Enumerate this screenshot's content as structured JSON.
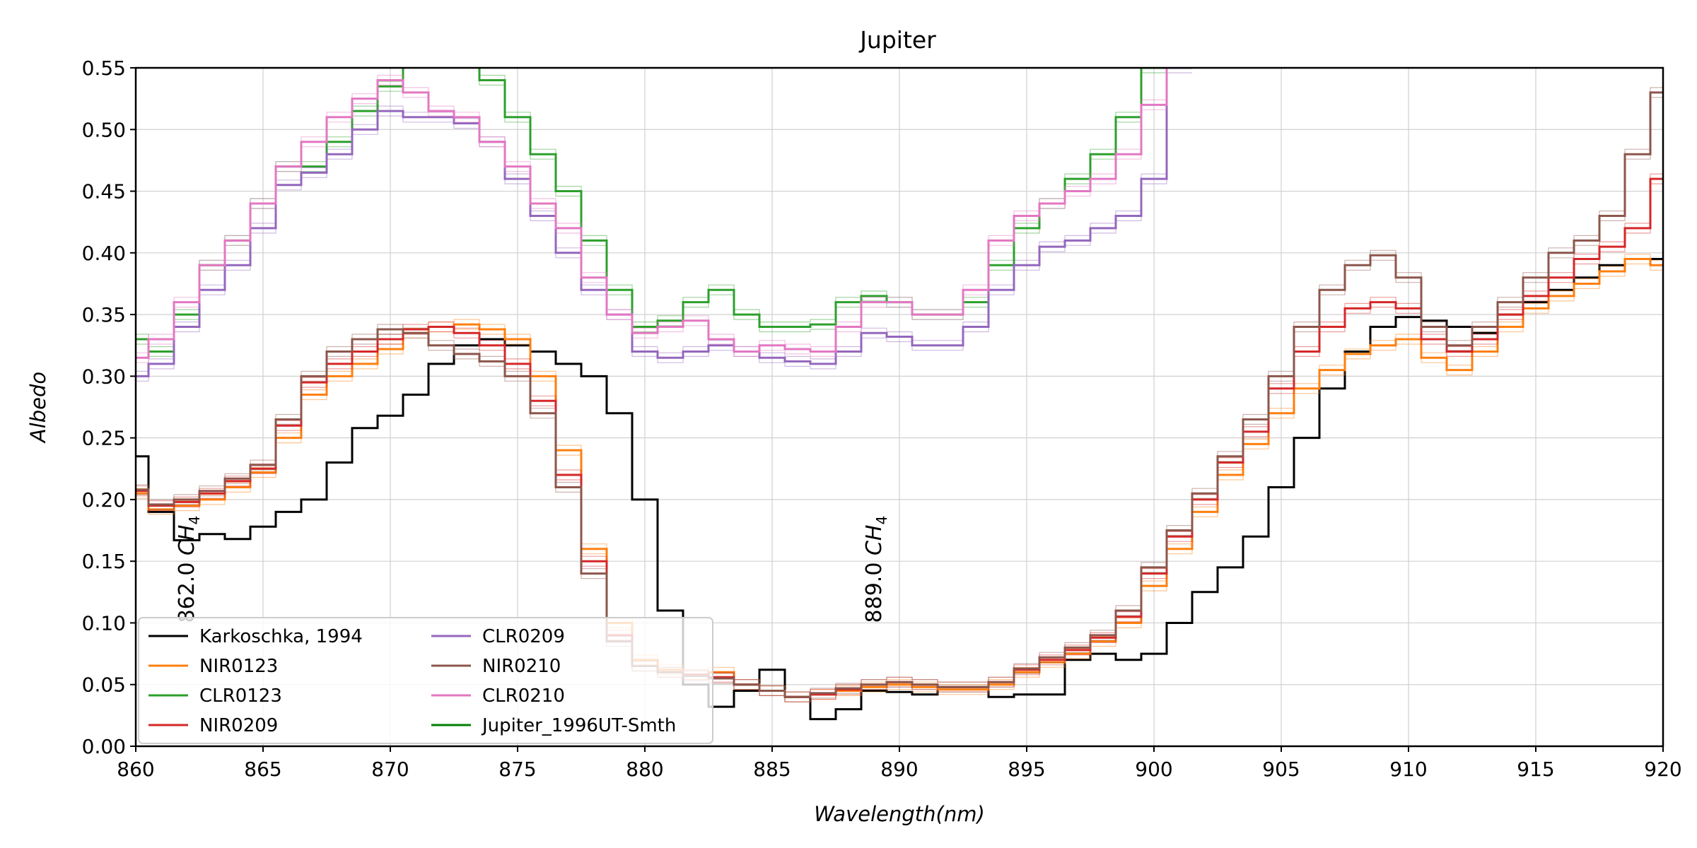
{
  "chart_data": {
    "type": "line",
    "title": "Jupiter",
    "xlabel": "Wavelength(nm)",
    "ylabel": "Albedo",
    "xlim": [
      860,
      920
    ],
    "ylim": [
      0,
      0.55
    ],
    "xticks": [
      860,
      865,
      870,
      875,
      880,
      885,
      890,
      895,
      900,
      905,
      910,
      915,
      920
    ],
    "yticks": [
      0.0,
      0.05,
      0.1,
      0.15,
      0.2,
      0.25,
      0.3,
      0.35,
      0.4,
      0.45,
      0.5,
      0.55
    ],
    "xtick_labels": [
      "860",
      "865",
      "870",
      "875",
      "880",
      "885",
      "890",
      "895",
      "900",
      "905",
      "910",
      "915",
      "920"
    ],
    "ytick_labels": [
      "0.00",
      "0.05",
      "0.10",
      "0.15",
      "0.20",
      "0.25",
      "0.30",
      "0.35",
      "0.40",
      "0.45",
      "0.50",
      "0.55"
    ],
    "grid": true,
    "legend_position": "lower-left",
    "annotations": [
      {
        "text": "862.0 CH4",
        "label_plain": "862.0",
        "x": 862.0,
        "y": 0.1
      },
      {
        "text": "889.0 CH4",
        "label_plain": "889.0",
        "x": 889.0,
        "y": 0.1
      }
    ],
    "series": [
      {
        "name": "Karkoschka, 1994",
        "color": "#000000",
        "x": [
          860,
          861,
          862,
          863,
          864,
          865,
          866,
          867,
          868,
          869,
          870,
          871,
          872,
          873,
          874,
          875,
          876,
          877,
          878,
          879,
          880,
          881,
          882,
          883,
          884,
          885,
          886,
          887,
          888,
          889,
          890,
          891,
          892,
          893,
          894,
          895,
          896,
          897,
          898,
          899,
          900,
          901,
          902,
          903,
          904,
          905,
          906,
          907,
          908,
          909,
          910,
          911,
          912,
          913,
          914,
          915,
          916,
          917,
          918,
          919,
          920
        ],
        "y": [
          0.235,
          0.19,
          0.167,
          0.172,
          0.168,
          0.178,
          0.19,
          0.2,
          0.23,
          0.258,
          0.268,
          0.285,
          0.31,
          0.325,
          0.33,
          0.325,
          0.32,
          0.31,
          0.3,
          0.27,
          0.2,
          0.11,
          0.05,
          0.032,
          0.045,
          0.062,
          0.04,
          0.022,
          0.03,
          0.045,
          0.044,
          0.042,
          0.048,
          0.048,
          0.04,
          0.042,
          0.042,
          0.07,
          0.075,
          0.07,
          0.075,
          0.1,
          0.125,
          0.145,
          0.17,
          0.21,
          0.25,
          0.29,
          0.32,
          0.34,
          0.348,
          0.345,
          0.34,
          0.335,
          0.35,
          0.36,
          0.37,
          0.38,
          0.39,
          0.395,
          0.395
        ]
      },
      {
        "name": "NIR0123",
        "color": "#ff7f0e",
        "x": [
          860,
          861,
          862,
          863,
          864,
          865,
          866,
          867,
          868,
          869,
          870,
          871,
          872,
          873,
          874,
          875,
          876,
          877,
          878,
          879,
          880,
          881,
          882,
          883,
          884,
          885,
          886,
          887,
          888,
          889,
          890,
          891,
          892,
          893,
          894,
          895,
          896,
          897,
          898,
          899,
          900,
          901,
          902,
          903,
          904,
          905,
          906,
          907,
          908,
          909,
          910,
          911,
          912,
          913,
          914,
          915,
          916,
          917,
          918,
          919,
          920
        ],
        "y": [
          0.205,
          0.192,
          0.195,
          0.2,
          0.21,
          0.222,
          0.25,
          0.285,
          0.3,
          0.31,
          0.322,
          0.335,
          0.34,
          0.342,
          0.338,
          0.33,
          0.3,
          0.24,
          0.16,
          0.1,
          0.07,
          0.062,
          0.058,
          0.06,
          0.05,
          0.045,
          0.04,
          0.042,
          0.045,
          0.048,
          0.05,
          0.048,
          0.046,
          0.046,
          0.05,
          0.06,
          0.068,
          0.075,
          0.085,
          0.1,
          0.13,
          0.16,
          0.19,
          0.22,
          0.245,
          0.27,
          0.29,
          0.305,
          0.318,
          0.325,
          0.33,
          0.315,
          0.305,
          0.32,
          0.34,
          0.355,
          0.365,
          0.375,
          0.385,
          0.395,
          0.39
        ]
      },
      {
        "name": "CLR0123",
        "color": "#2ca02c",
        "x": [
          860,
          861,
          862,
          863,
          864,
          865,
          866,
          867,
          868,
          869,
          870,
          871,
          872,
          873,
          874,
          875,
          876,
          877,
          878,
          879,
          880,
          881,
          882,
          883,
          884,
          885,
          886,
          887,
          888,
          889,
          890,
          891,
          892,
          893,
          894,
          895,
          896,
          897,
          898,
          899,
          900,
          901
        ],
        "y": [
          0.33,
          0.32,
          0.35,
          0.39,
          0.41,
          0.44,
          0.47,
          0.47,
          0.49,
          0.515,
          0.535,
          0.56,
          0.58,
          0.56,
          0.54,
          0.51,
          0.48,
          0.45,
          0.41,
          0.37,
          0.34,
          0.345,
          0.36,
          0.37,
          0.35,
          0.34,
          0.34,
          0.342,
          0.36,
          0.365,
          0.36,
          0.35,
          0.35,
          0.36,
          0.39,
          0.42,
          0.44,
          0.46,
          0.48,
          0.51,
          0.55,
          0.6
        ]
      },
      {
        "name": "NIR0209",
        "color": "#d62728",
        "x": [
          860,
          861,
          862,
          863,
          864,
          865,
          866,
          867,
          868,
          869,
          870,
          871,
          872,
          873,
          874,
          875,
          876,
          877,
          878,
          879,
          880,
          881,
          882,
          883,
          884,
          885,
          886,
          887,
          888,
          889,
          890,
          891,
          892,
          893,
          894,
          895,
          896,
          897,
          898,
          899,
          900,
          901,
          902,
          903,
          904,
          905,
          906,
          907,
          908,
          909,
          910,
          911,
          912,
          913,
          914,
          915,
          916,
          917,
          918,
          919,
          920
        ],
        "y": [
          0.207,
          0.195,
          0.198,
          0.205,
          0.215,
          0.225,
          0.26,
          0.295,
          0.31,
          0.32,
          0.33,
          0.338,
          0.34,
          0.335,
          0.325,
          0.31,
          0.28,
          0.22,
          0.15,
          0.09,
          0.065,
          0.06,
          0.058,
          0.056,
          0.05,
          0.045,
          0.04,
          0.042,
          0.046,
          0.05,
          0.052,
          0.05,
          0.048,
          0.048,
          0.052,
          0.062,
          0.07,
          0.078,
          0.088,
          0.105,
          0.14,
          0.17,
          0.2,
          0.23,
          0.255,
          0.29,
          0.32,
          0.34,
          0.355,
          0.36,
          0.355,
          0.33,
          0.32,
          0.33,
          0.35,
          0.365,
          0.38,
          0.395,
          0.405,
          0.42,
          0.46
        ]
      },
      {
        "name": "CLR0209",
        "color": "#9467bd",
        "x": [
          860,
          861,
          862,
          863,
          864,
          865,
          866,
          867,
          868,
          869,
          870,
          871,
          872,
          873,
          874,
          875,
          876,
          877,
          878,
          879,
          880,
          881,
          882,
          883,
          884,
          885,
          886,
          887,
          888,
          889,
          890,
          891,
          892,
          893,
          894,
          895,
          896,
          897,
          898,
          899,
          900,
          901
        ],
        "y": [
          0.3,
          0.31,
          0.34,
          0.37,
          0.39,
          0.42,
          0.455,
          0.465,
          0.48,
          0.5,
          0.515,
          0.51,
          0.51,
          0.505,
          0.49,
          0.46,
          0.43,
          0.4,
          0.37,
          0.35,
          0.32,
          0.315,
          0.32,
          0.325,
          0.32,
          0.315,
          0.312,
          0.31,
          0.32,
          0.335,
          0.332,
          0.325,
          0.325,
          0.34,
          0.37,
          0.39,
          0.405,
          0.41,
          0.42,
          0.43,
          0.46,
          0.55
        ]
      },
      {
        "name": "NIR0210",
        "color": "#8c564b",
        "x": [
          860,
          861,
          862,
          863,
          864,
          865,
          866,
          867,
          868,
          869,
          870,
          871,
          872,
          873,
          874,
          875,
          876,
          877,
          878,
          879,
          880,
          881,
          882,
          883,
          884,
          885,
          886,
          887,
          888,
          889,
          890,
          891,
          892,
          893,
          894,
          895,
          896,
          897,
          898,
          899,
          900,
          901,
          902,
          903,
          904,
          905,
          906,
          907,
          908,
          909,
          910,
          911,
          912,
          913,
          914,
          915,
          916,
          917,
          918,
          919,
          920
        ],
        "y": [
          0.208,
          0.196,
          0.2,
          0.207,
          0.217,
          0.228,
          0.265,
          0.3,
          0.32,
          0.33,
          0.338,
          0.335,
          0.325,
          0.318,
          0.312,
          0.3,
          0.27,
          0.21,
          0.14,
          0.085,
          0.065,
          0.06,
          0.057,
          0.055,
          0.05,
          0.045,
          0.04,
          0.043,
          0.047,
          0.05,
          0.052,
          0.05,
          0.048,
          0.048,
          0.052,
          0.063,
          0.072,
          0.08,
          0.09,
          0.11,
          0.145,
          0.175,
          0.205,
          0.235,
          0.265,
          0.3,
          0.34,
          0.37,
          0.39,
          0.398,
          0.38,
          0.34,
          0.325,
          0.34,
          0.36,
          0.38,
          0.4,
          0.41,
          0.43,
          0.48,
          0.53
        ]
      },
      {
        "name": "CLR0210",
        "color": "#e377c2",
        "x": [
          860,
          861,
          862,
          863,
          864,
          865,
          866,
          867,
          868,
          869,
          870,
          871,
          872,
          873,
          874,
          875,
          876,
          877,
          878,
          879,
          880,
          881,
          882,
          883,
          884,
          885,
          886,
          887,
          888,
          889,
          890,
          891,
          892,
          893,
          894,
          895,
          896,
          897,
          898,
          899,
          900,
          901
        ],
        "y": [
          0.315,
          0.33,
          0.36,
          0.39,
          0.41,
          0.44,
          0.47,
          0.49,
          0.51,
          0.525,
          0.54,
          0.53,
          0.515,
          0.51,
          0.49,
          0.47,
          0.44,
          0.42,
          0.38,
          0.35,
          0.335,
          0.34,
          0.345,
          0.33,
          0.32,
          0.325,
          0.322,
          0.32,
          0.34,
          0.36,
          0.36,
          0.35,
          0.35,
          0.37,
          0.41,
          0.43,
          0.44,
          0.45,
          0.46,
          0.48,
          0.52,
          0.56
        ]
      },
      {
        "name": "Jupiter_1996UT-Smth",
        "color": "#008000",
        "x": [],
        "y": []
      }
    ]
  }
}
